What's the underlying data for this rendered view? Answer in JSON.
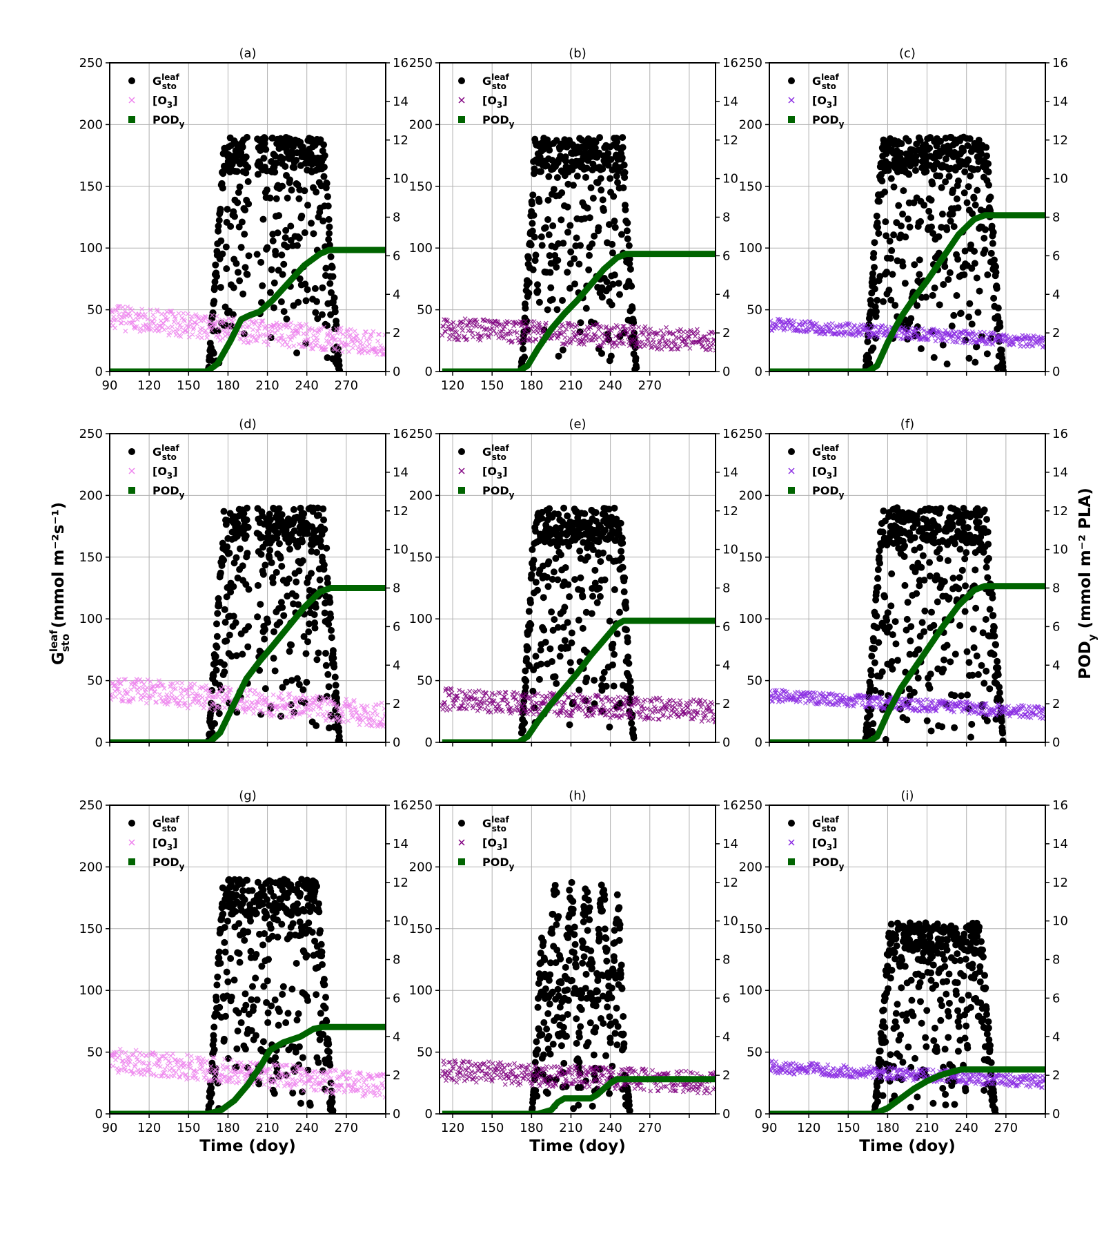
{
  "figure": {
    "ylabel_left": "G",
    "ylabel_left_sup": "leaf",
    "ylabel_left_sub": "sto",
    "ylabel_left_units": " (mmol m⁻²s⁻¹)",
    "ylabel_right": "POD",
    "ylabel_right_sub": "y",
    "ylabel_right_units": " (mmol m⁻² PLA)",
    "xlabel": "Time (doy)",
    "legend": [
      {
        "symbol": "circle",
        "label": "G",
        "sup": "leaf",
        "sub": "sto"
      },
      {
        "symbol": "x",
        "label": "[O",
        "sub": "3",
        "suffix": "]"
      },
      {
        "symbol": "square",
        "label": "POD",
        "sub": "y"
      }
    ],
    "colors": {
      "gsto": "#000000",
      "pod": "#006400",
      "o3_light": "#ee82ee",
      "o3_dark": "#800080",
      "o3_violet": "#8a2be2",
      "grid": "#b0b0b0"
    }
  },
  "chart_data": [
    {
      "panel": "(a)",
      "type": "scatter",
      "xlim": [
        90,
        300
      ],
      "ylim_left": [
        0,
        250
      ],
      "ylim_right": [
        0,
        16
      ],
      "xticks": [
        90,
        120,
        150,
        180,
        210,
        240,
        270
      ],
      "o3_color": "#ee82ee",
      "gsto": {
        "start": 165,
        "end": 265,
        "max": 190,
        "gaps": [
          [
            196,
            202
          ],
          [
            210,
            212
          ]
        ]
      },
      "o3": {
        "start": 90,
        "end": 300,
        "begin_mean": 44,
        "end_mean": 22,
        "spread": 10
      },
      "pod": [
        [
          90,
          0
        ],
        [
          164,
          0
        ],
        [
          172,
          0.4
        ],
        [
          182,
          1.6
        ],
        [
          190,
          2.7
        ],
        [
          196,
          2.9
        ],
        [
          204,
          3.1
        ],
        [
          214,
          3.7
        ],
        [
          226,
          4.6
        ],
        [
          238,
          5.5
        ],
        [
          250,
          6.1
        ],
        [
          257,
          6.3
        ],
        [
          300,
          6.3
        ]
      ]
    },
    {
      "panel": "(b)",
      "type": "scatter",
      "xlim": [
        110,
        320
      ],
      "ylim_left": [
        0,
        250
      ],
      "ylim_right": [
        0,
        16
      ],
      "xticks": [
        120,
        150,
        180,
        210,
        240,
        270
      ],
      "o3_color": "#800080",
      "gsto": {
        "start": 172,
        "end": 260,
        "max": 190,
        "gaps": []
      },
      "o3": {
        "start": 112,
        "end": 320,
        "begin_mean": 35,
        "end_mean": 25,
        "spread": 9
      },
      "pod": [
        [
          112,
          0
        ],
        [
          170,
          0
        ],
        [
          177,
          0.3
        ],
        [
          185,
          1.2
        ],
        [
          195,
          2.2
        ],
        [
          205,
          3.0
        ],
        [
          215,
          3.7
        ],
        [
          225,
          4.5
        ],
        [
          235,
          5.3
        ],
        [
          245,
          5.9
        ],
        [
          252,
          6.1
        ],
        [
          320,
          6.1
        ]
      ]
    },
    {
      "panel": "(c)",
      "type": "scatter",
      "xlim": [
        90,
        300
      ],
      "ylim_left": [
        0,
        250
      ],
      "ylim_right": [
        0,
        16
      ],
      "xticks": [],
      "o3_color": "#8a2be2",
      "gsto": {
        "start": 163,
        "end": 268,
        "max": 190,
        "gaps": []
      },
      "o3": {
        "start": 90,
        "end": 300,
        "begin_mean": 38,
        "end_mean": 24,
        "spread": 5
      },
      "pod": [
        [
          90,
          0
        ],
        [
          165,
          0
        ],
        [
          172,
          0.3
        ],
        [
          180,
          1.5
        ],
        [
          190,
          2.8
        ],
        [
          200,
          3.8
        ],
        [
          210,
          4.7
        ],
        [
          222,
          5.9
        ],
        [
          234,
          7.1
        ],
        [
          246,
          7.9
        ],
        [
          254,
          8.1
        ],
        [
          300,
          8.1
        ]
      ]
    },
    {
      "panel": "(d)",
      "type": "scatter",
      "xlim": [
        90,
        300
      ],
      "ylim_left": [
        0,
        250
      ],
      "ylim_right": [
        0,
        16
      ],
      "xticks": [],
      "o3_color": "#ee82ee",
      "gsto": {
        "start": 165,
        "end": 265,
        "max": 190,
        "gaps": [
          [
            196,
            202
          ]
        ]
      },
      "o3": {
        "start": 90,
        "end": 300,
        "begin_mean": 44,
        "end_mean": 22,
        "spread": 10
      },
      "pod": [
        [
          90,
          0
        ],
        [
          166,
          0
        ],
        [
          174,
          0.5
        ],
        [
          184,
          1.9
        ],
        [
          194,
          3.3
        ],
        [
          204,
          4.2
        ],
        [
          214,
          5.0
        ],
        [
          226,
          6.0
        ],
        [
          238,
          7.0
        ],
        [
          250,
          7.8
        ],
        [
          258,
          8.0
        ],
        [
          300,
          8.0
        ]
      ]
    },
    {
      "panel": "(e)",
      "type": "scatter",
      "xlim": [
        110,
        320
      ],
      "ylim_left": [
        0,
        250
      ],
      "ylim_right": [
        0,
        16
      ],
      "xticks": [],
      "o3_color": "#800080",
      "gsto": {
        "start": 172,
        "end": 258,
        "max": 190,
        "gaps": []
      },
      "o3": {
        "start": 112,
        "end": 320,
        "begin_mean": 35,
        "end_mean": 25,
        "spread": 9
      },
      "pod": [
        [
          112,
          0
        ],
        [
          170,
          0
        ],
        [
          177,
          0.3
        ],
        [
          185,
          1.1
        ],
        [
          195,
          2.0
        ],
        [
          205,
          2.8
        ],
        [
          215,
          3.6
        ],
        [
          225,
          4.5
        ],
        [
          235,
          5.3
        ],
        [
          245,
          6.1
        ],
        [
          250,
          6.3
        ],
        [
          320,
          6.3
        ]
      ]
    },
    {
      "panel": "(f)",
      "type": "scatter",
      "xlim": [
        90,
        300
      ],
      "ylim_left": [
        0,
        250
      ],
      "ylim_right": [
        0,
        16
      ],
      "xticks": [],
      "o3_color": "#8a2be2",
      "gsto": {
        "start": 163,
        "end": 268,
        "max": 190,
        "gaps": []
      },
      "o3": {
        "start": 90,
        "end": 300,
        "begin_mean": 38,
        "end_mean": 24,
        "spread": 5
      },
      "pod": [
        [
          90,
          0
        ],
        [
          165,
          0
        ],
        [
          172,
          0.3
        ],
        [
          180,
          1.5
        ],
        [
          190,
          2.8
        ],
        [
          200,
          3.8
        ],
        [
          210,
          4.8
        ],
        [
          222,
          6.0
        ],
        [
          234,
          7.1
        ],
        [
          246,
          7.9
        ],
        [
          254,
          8.1
        ],
        [
          300,
          8.1
        ]
      ]
    },
    {
      "panel": "(g)",
      "type": "scatter",
      "xlim": [
        90,
        300
      ],
      "ylim_left": [
        0,
        250
      ],
      "ylim_right": [
        0,
        16
      ],
      "xticks": [
        90,
        120,
        150,
        180,
        210,
        240,
        270
      ],
      "o3_color": "#ee82ee",
      "gsto": {
        "start": 165,
        "end": 260,
        "max": 190,
        "gaps": []
      },
      "o3": {
        "start": 90,
        "end": 300,
        "begin_mean": 44,
        "end_mean": 22,
        "spread": 10
      },
      "pod": [
        [
          90,
          0
        ],
        [
          165,
          0
        ],
        [
          175,
          0.2
        ],
        [
          185,
          0.7
        ],
        [
          195,
          1.5
        ],
        [
          205,
          2.5
        ],
        [
          212,
          3.3
        ],
        [
          222,
          3.7
        ],
        [
          235,
          4.0
        ],
        [
          245,
          4.4
        ],
        [
          252,
          4.5
        ],
        [
          300,
          4.5
        ]
      ]
    },
    {
      "panel": "(h)",
      "type": "scatter",
      "xlim": [
        110,
        320
      ],
      "ylim_left": [
        0,
        250
      ],
      "ylim_right": [
        0,
        16
      ],
      "xticks": [
        120,
        150,
        180,
        210,
        240,
        270
      ],
      "o3_color": "#800080",
      "gsto": {
        "start": 180,
        "end": 255,
        "max": 190,
        "gaps": []
      },
      "o3": {
        "start": 112,
        "end": 320,
        "begin_mean": 35,
        "end_mean": 25,
        "spread": 9
      },
      "pod": [
        [
          112,
          0
        ],
        [
          185,
          0
        ],
        [
          195,
          0.2
        ],
        [
          200,
          0.6
        ],
        [
          205,
          0.8
        ],
        [
          225,
          0.8
        ],
        [
          230,
          1.0
        ],
        [
          235,
          1.3
        ],
        [
          240,
          1.6
        ],
        [
          245,
          1.8
        ],
        [
          320,
          1.8
        ]
      ]
    },
    {
      "panel": "(i)",
      "type": "scatter",
      "xlim": [
        90,
        300
      ],
      "ylim_left": [
        0,
        250
      ],
      "ylim_right": [
        0,
        16
      ],
      "xticks": [
        90,
        120,
        150,
        180,
        210,
        240,
        270
      ],
      "o3_color": "#8a2be2",
      "gsto": {
        "start": 170,
        "end": 262,
        "max": 155,
        "gaps": []
      },
      "o3": {
        "start": 90,
        "end": 300,
        "begin_mean": 38,
        "end_mean": 26,
        "spread": 5
      },
      "pod": [
        [
          90,
          0
        ],
        [
          170,
          0
        ],
        [
          180,
          0.3
        ],
        [
          190,
          0.8
        ],
        [
          200,
          1.3
        ],
        [
          210,
          1.7
        ],
        [
          220,
          2.0
        ],
        [
          230,
          2.2
        ],
        [
          236,
          2.3
        ],
        [
          300,
          2.3
        ]
      ]
    }
  ]
}
